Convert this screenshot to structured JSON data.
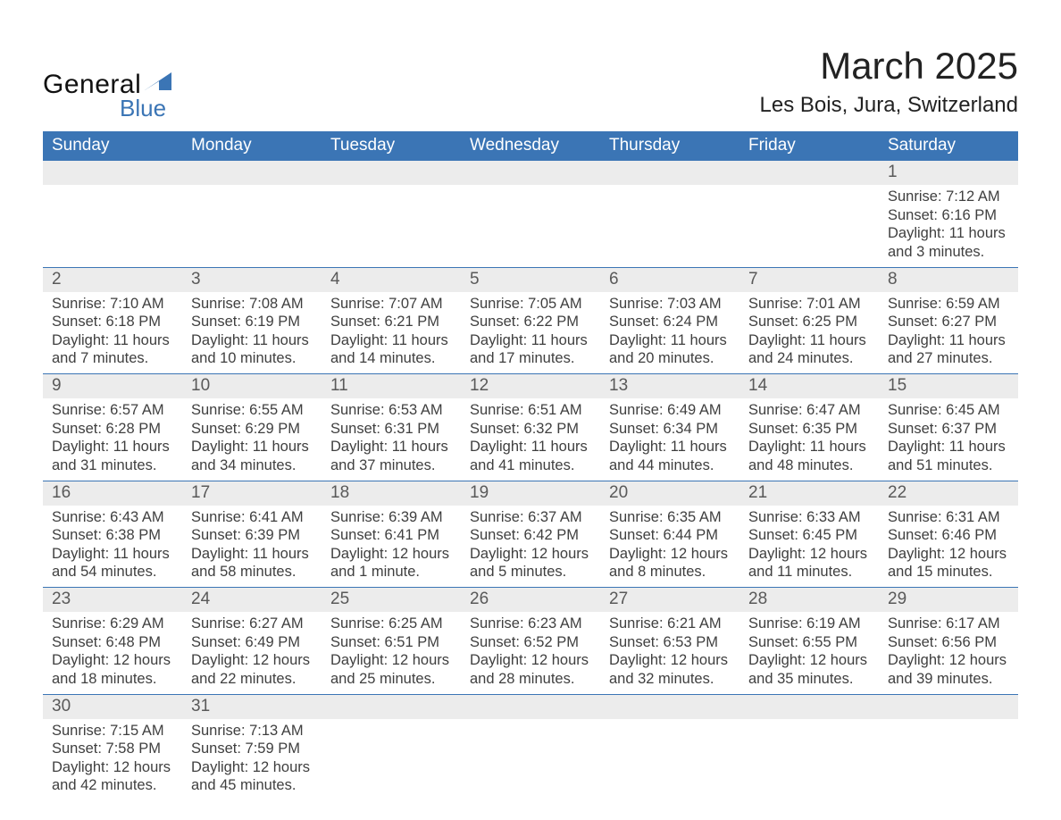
{
  "logo": {
    "word1": "General",
    "word2": "Blue",
    "accent_color": "#3b75b5",
    "text_color": "#111111"
  },
  "title": "March 2025",
  "location": "Les Bois, Jura, Switzerland",
  "header_bg": "#3b75b5",
  "header_fg": "#ffffff",
  "daynum_bg": "#ececec",
  "row_divider": "#3b75b5",
  "text_color": "#3f3f3f",
  "columns": [
    "Sunday",
    "Monday",
    "Tuesday",
    "Wednesday",
    "Thursday",
    "Friday",
    "Saturday"
  ],
  "weeks": [
    [
      {
        "day": "",
        "sunrise": "",
        "sunset": "",
        "daylight": ""
      },
      {
        "day": "",
        "sunrise": "",
        "sunset": "",
        "daylight": ""
      },
      {
        "day": "",
        "sunrise": "",
        "sunset": "",
        "daylight": ""
      },
      {
        "day": "",
        "sunrise": "",
        "sunset": "",
        "daylight": ""
      },
      {
        "day": "",
        "sunrise": "",
        "sunset": "",
        "daylight": ""
      },
      {
        "day": "",
        "sunrise": "",
        "sunset": "",
        "daylight": ""
      },
      {
        "day": "1",
        "sunrise": "Sunrise: 7:12 AM",
        "sunset": "Sunset: 6:16 PM",
        "daylight": "Daylight: 11 hours and 3 minutes."
      }
    ],
    [
      {
        "day": "2",
        "sunrise": "Sunrise: 7:10 AM",
        "sunset": "Sunset: 6:18 PM",
        "daylight": "Daylight: 11 hours and 7 minutes."
      },
      {
        "day": "3",
        "sunrise": "Sunrise: 7:08 AM",
        "sunset": "Sunset: 6:19 PM",
        "daylight": "Daylight: 11 hours and 10 minutes."
      },
      {
        "day": "4",
        "sunrise": "Sunrise: 7:07 AM",
        "sunset": "Sunset: 6:21 PM",
        "daylight": "Daylight: 11 hours and 14 minutes."
      },
      {
        "day": "5",
        "sunrise": "Sunrise: 7:05 AM",
        "sunset": "Sunset: 6:22 PM",
        "daylight": "Daylight: 11 hours and 17 minutes."
      },
      {
        "day": "6",
        "sunrise": "Sunrise: 7:03 AM",
        "sunset": "Sunset: 6:24 PM",
        "daylight": "Daylight: 11 hours and 20 minutes."
      },
      {
        "day": "7",
        "sunrise": "Sunrise: 7:01 AM",
        "sunset": "Sunset: 6:25 PM",
        "daylight": "Daylight: 11 hours and 24 minutes."
      },
      {
        "day": "8",
        "sunrise": "Sunrise: 6:59 AM",
        "sunset": "Sunset: 6:27 PM",
        "daylight": "Daylight: 11 hours and 27 minutes."
      }
    ],
    [
      {
        "day": "9",
        "sunrise": "Sunrise: 6:57 AM",
        "sunset": "Sunset: 6:28 PM",
        "daylight": "Daylight: 11 hours and 31 minutes."
      },
      {
        "day": "10",
        "sunrise": "Sunrise: 6:55 AM",
        "sunset": "Sunset: 6:29 PM",
        "daylight": "Daylight: 11 hours and 34 minutes."
      },
      {
        "day": "11",
        "sunrise": "Sunrise: 6:53 AM",
        "sunset": "Sunset: 6:31 PM",
        "daylight": "Daylight: 11 hours and 37 minutes."
      },
      {
        "day": "12",
        "sunrise": "Sunrise: 6:51 AM",
        "sunset": "Sunset: 6:32 PM",
        "daylight": "Daylight: 11 hours and 41 minutes."
      },
      {
        "day": "13",
        "sunrise": "Sunrise: 6:49 AM",
        "sunset": "Sunset: 6:34 PM",
        "daylight": "Daylight: 11 hours and 44 minutes."
      },
      {
        "day": "14",
        "sunrise": "Sunrise: 6:47 AM",
        "sunset": "Sunset: 6:35 PM",
        "daylight": "Daylight: 11 hours and 48 minutes."
      },
      {
        "day": "15",
        "sunrise": "Sunrise: 6:45 AM",
        "sunset": "Sunset: 6:37 PM",
        "daylight": "Daylight: 11 hours and 51 minutes."
      }
    ],
    [
      {
        "day": "16",
        "sunrise": "Sunrise: 6:43 AM",
        "sunset": "Sunset: 6:38 PM",
        "daylight": "Daylight: 11 hours and 54 minutes."
      },
      {
        "day": "17",
        "sunrise": "Sunrise: 6:41 AM",
        "sunset": "Sunset: 6:39 PM",
        "daylight": "Daylight: 11 hours and 58 minutes."
      },
      {
        "day": "18",
        "sunrise": "Sunrise: 6:39 AM",
        "sunset": "Sunset: 6:41 PM",
        "daylight": "Daylight: 12 hours and 1 minute."
      },
      {
        "day": "19",
        "sunrise": "Sunrise: 6:37 AM",
        "sunset": "Sunset: 6:42 PM",
        "daylight": "Daylight: 12 hours and 5 minutes."
      },
      {
        "day": "20",
        "sunrise": "Sunrise: 6:35 AM",
        "sunset": "Sunset: 6:44 PM",
        "daylight": "Daylight: 12 hours and 8 minutes."
      },
      {
        "day": "21",
        "sunrise": "Sunrise: 6:33 AM",
        "sunset": "Sunset: 6:45 PM",
        "daylight": "Daylight: 12 hours and 11 minutes."
      },
      {
        "day": "22",
        "sunrise": "Sunrise: 6:31 AM",
        "sunset": "Sunset: 6:46 PM",
        "daylight": "Daylight: 12 hours and 15 minutes."
      }
    ],
    [
      {
        "day": "23",
        "sunrise": "Sunrise: 6:29 AM",
        "sunset": "Sunset: 6:48 PM",
        "daylight": "Daylight: 12 hours and 18 minutes."
      },
      {
        "day": "24",
        "sunrise": "Sunrise: 6:27 AM",
        "sunset": "Sunset: 6:49 PM",
        "daylight": "Daylight: 12 hours and 22 minutes."
      },
      {
        "day": "25",
        "sunrise": "Sunrise: 6:25 AM",
        "sunset": "Sunset: 6:51 PM",
        "daylight": "Daylight: 12 hours and 25 minutes."
      },
      {
        "day": "26",
        "sunrise": "Sunrise: 6:23 AM",
        "sunset": "Sunset: 6:52 PM",
        "daylight": "Daylight: 12 hours and 28 minutes."
      },
      {
        "day": "27",
        "sunrise": "Sunrise: 6:21 AM",
        "sunset": "Sunset: 6:53 PM",
        "daylight": "Daylight: 12 hours and 32 minutes."
      },
      {
        "day": "28",
        "sunrise": "Sunrise: 6:19 AM",
        "sunset": "Sunset: 6:55 PM",
        "daylight": "Daylight: 12 hours and 35 minutes."
      },
      {
        "day": "29",
        "sunrise": "Sunrise: 6:17 AM",
        "sunset": "Sunset: 6:56 PM",
        "daylight": "Daylight: 12 hours and 39 minutes."
      }
    ],
    [
      {
        "day": "30",
        "sunrise": "Sunrise: 7:15 AM",
        "sunset": "Sunset: 7:58 PM",
        "daylight": "Daylight: 12 hours and 42 minutes."
      },
      {
        "day": "31",
        "sunrise": "Sunrise: 7:13 AM",
        "sunset": "Sunset: 7:59 PM",
        "daylight": "Daylight: 12 hours and 45 minutes."
      },
      {
        "day": "",
        "sunrise": "",
        "sunset": "",
        "daylight": ""
      },
      {
        "day": "",
        "sunrise": "",
        "sunset": "",
        "daylight": ""
      },
      {
        "day": "",
        "sunrise": "",
        "sunset": "",
        "daylight": ""
      },
      {
        "day": "",
        "sunrise": "",
        "sunset": "",
        "daylight": ""
      },
      {
        "day": "",
        "sunrise": "",
        "sunset": "",
        "daylight": ""
      }
    ]
  ]
}
